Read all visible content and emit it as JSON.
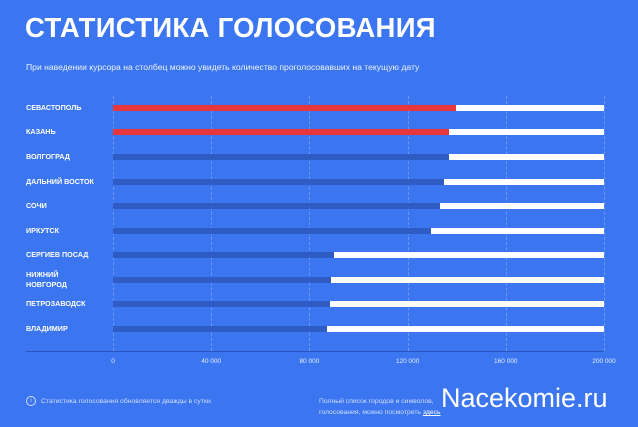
{
  "header": {
    "title": "СТАТИСТИКА ГОЛОСОВАНИЯ",
    "subtitle": "При наведении курсора на столбец можно увидеть количество проголосовавших на текущую дату"
  },
  "chart_data": {
    "type": "bar",
    "orientation": "horizontal",
    "categories": [
      "СЕВАСТОПОЛЬ",
      "КАЗАНЬ",
      "ВОЛГОГРАД",
      "ДАЛЬНИЙ ВОСТОК",
      "СОЧИ",
      "ИРКУТСК",
      "СЕРГИЕВ ПОСАД",
      "НИЖНИЙ НОВГОРОД",
      "ПЕТРОЗАВОДСК",
      "ВЛАДИМИР"
    ],
    "values": [
      139700,
      136900,
      136900,
      134800,
      133200,
      129500,
      90000,
      88800,
      88400,
      87200
    ],
    "highlighted": [
      true,
      true,
      false,
      false,
      false,
      false,
      false,
      false,
      false,
      false
    ],
    "xlim": [
      0,
      200000
    ],
    "xticks": [
      "0",
      "40 000",
      "80 000",
      "120 000",
      "160 000",
      "200 000"
    ],
    "xtick_values": [
      0,
      40000,
      80000,
      120000,
      160000,
      200000
    ],
    "grid": true,
    "colors": {
      "background": "#3b76f0",
      "highlight": "#e8363d",
      "normal": "#2f5bc4",
      "track": "#ffffff"
    }
  },
  "footer": {
    "info_icon": "info-icon",
    "note": "Статистика голосования обновляется дважды в сутки.",
    "list_text": "Полный список городов и символов,",
    "list_text_2": "голосования, можно посмотреть",
    "link": "здесь",
    "watermark": "Nacekomie.ru"
  }
}
